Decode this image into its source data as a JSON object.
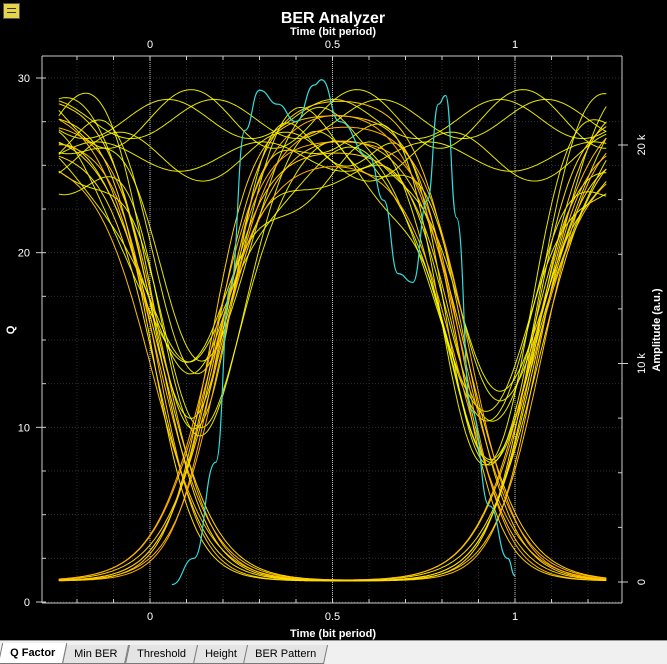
{
  "window": {
    "icon": "report-window-icon"
  },
  "chart_data": {
    "type": "line",
    "title": "BER Analyzer",
    "x_top_label": "Time (bit period)",
    "xlabel": "Time (bit period)",
    "ylabel_left": "Q",
    "ylabel_right": "Amplitude (a.u.)",
    "x_range": [
      -0.25,
      1.25
    ],
    "x_ticks": [
      0,
      0.5,
      1
    ],
    "x_tick_labels": [
      "0",
      "0.5",
      "1"
    ],
    "y_left_range": [
      0,
      30
    ],
    "y_left_ticks": [
      0,
      10,
      20,
      30
    ],
    "y_left_tick_labels": [
      "0",
      "10",
      "20",
      "30"
    ],
    "y_right_range": [
      0,
      21000
    ],
    "y_right_ticks": [
      0,
      10000,
      20000
    ],
    "y_right_tick_labels": [
      "0",
      "10 k",
      "20 k"
    ],
    "grid": true,
    "eye_diagram": {
      "color": "#ffff00",
      "rise_center": 0.04,
      "fall_center": 1.04,
      "low_level": 1.2,
      "high_level_min": 25.5,
      "high_level_max": 29.5,
      "traces": 14
    },
    "q_factor_curve": {
      "color": "#33dddd",
      "points": [
        [
          0.06,
          1.0
        ],
        [
          0.12,
          2.5
        ],
        [
          0.18,
          8
        ],
        [
          0.22,
          18
        ],
        [
          0.26,
          27
        ],
        [
          0.3,
          29.3
        ],
        [
          0.35,
          28.5
        ],
        [
          0.4,
          27.5
        ],
        [
          0.45,
          29.6
        ],
        [
          0.47,
          29.9
        ],
        [
          0.52,
          27.5
        ],
        [
          0.6,
          25.5
        ],
        [
          0.64,
          23
        ],
        [
          0.68,
          18.8
        ],
        [
          0.72,
          18.3
        ],
        [
          0.76,
          23
        ],
        [
          0.79,
          28.5
        ],
        [
          0.81,
          29.0
        ],
        [
          0.84,
          22
        ],
        [
          0.88,
          11
        ],
        [
          0.93,
          5.5
        ],
        [
          0.98,
          2.5
        ],
        [
          1.0,
          1.5
        ]
      ]
    },
    "ber_pattern_floor": {
      "level": 1.1,
      "colors": [
        "#ff3300",
        "#cc00ff",
        "#3366ff",
        "#00cccc",
        "#ff3300",
        "#cc00ff"
      ]
    }
  },
  "tabs": [
    {
      "label": "Q Factor",
      "active": true
    },
    {
      "label": "Min BER",
      "active": false
    },
    {
      "label": "Threshold",
      "active": false
    },
    {
      "label": "Height",
      "active": false
    },
    {
      "label": "BER Pattern",
      "active": false
    }
  ]
}
